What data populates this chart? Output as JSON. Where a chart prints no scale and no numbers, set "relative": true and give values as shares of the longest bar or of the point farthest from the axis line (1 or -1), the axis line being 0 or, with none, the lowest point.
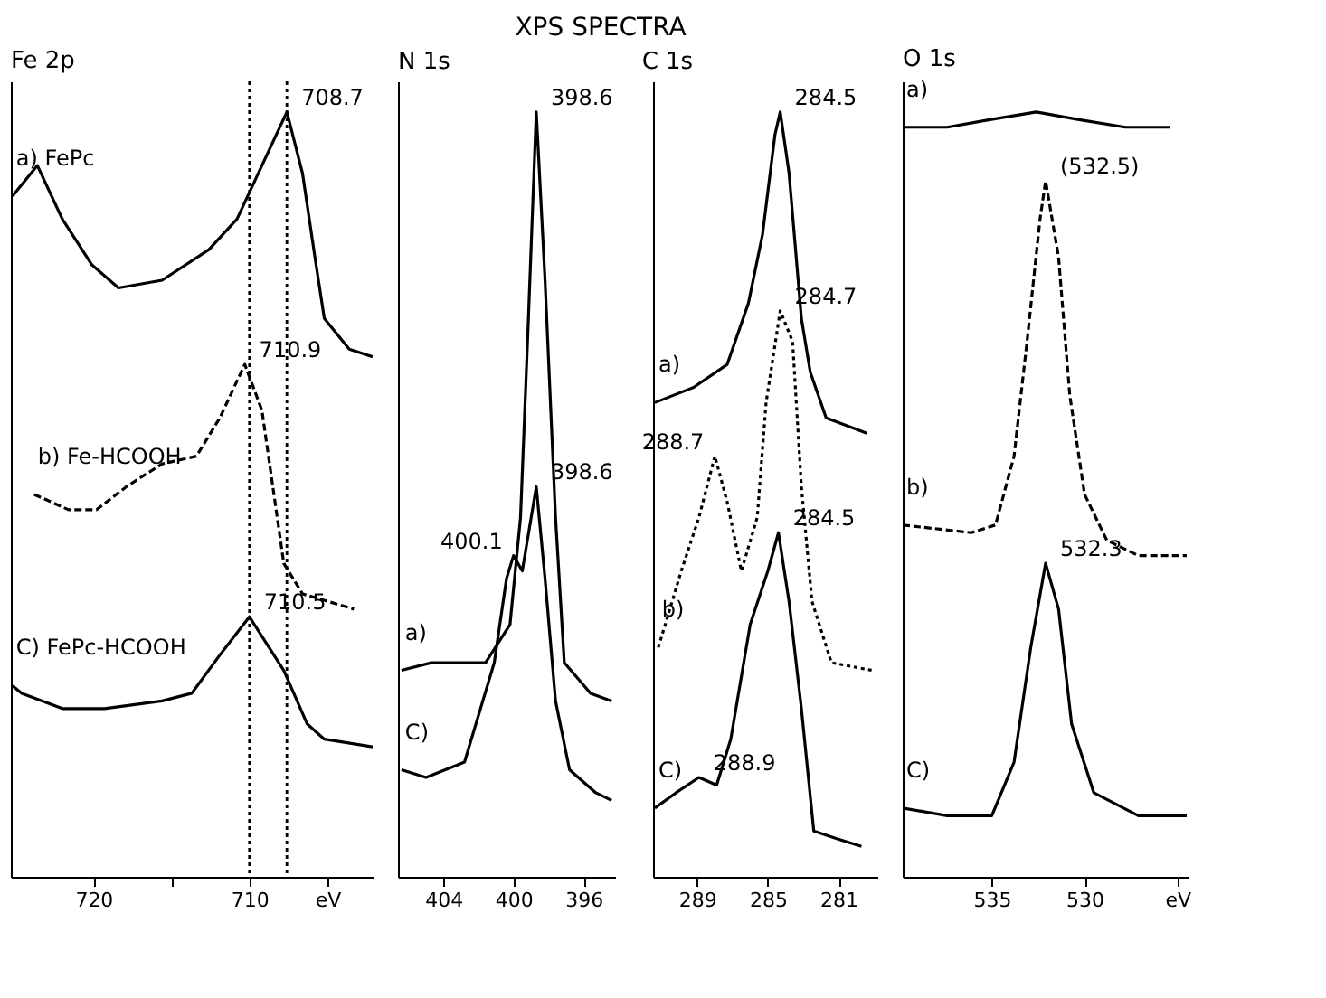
{
  "chart_data": [
    {
      "type": "line",
      "title": "Fe 2p",
      "relative": true,
      "xlim": [
        725.3,
        702.1
      ],
      "xticks": [
        720,
        {
          "value": 715,
          "label": null
        },
        710,
        {
          "value": 705,
          "label": "eV"
        }
      ],
      "annotations": [
        "XPS SPECTRA",
        {
          "text": "708.7",
          "x": 707.6,
          "y": 1.0
        },
        {
          "text": "710.9",
          "x": 710.3,
          "y": 0.67
        },
        {
          "text": "710.5",
          "x": 710.0,
          "y": 0.34
        }
      ],
      "ref_lines": [
        {
          "axis": "x",
          "value": 710.0,
          "label": null,
          "line_style": "dotted",
          "color": "#000000"
        },
        {
          "axis": "x",
          "value": 707.6,
          "label": null,
          "line_style": "dotted",
          "color": "#000000"
        }
      ],
      "series": [
        {
          "name": "a) FePc",
          "color": "#000000",
          "line_style": "solid",
          "x": [
            725.2,
            723.6,
            722.0,
            720.1,
            718.4,
            715.6,
            712.6,
            710.8,
            709.2,
            707.6,
            706.6,
            705.8,
            705.2,
            703.6,
            702.1
          ],
          "values": [
            0.89,
            0.93,
            0.86,
            0.8,
            0.77,
            0.78,
            0.82,
            0.86,
            0.93,
            1.0,
            0.92,
            0.81,
            0.73,
            0.69,
            0.68
          ]
        },
        {
          "name": "b) Fe-HCOOH",
          "color": "#000000",
          "line_style": "dashed",
          "x": [
            723.8,
            721.6,
            719.8,
            717.9,
            715.6,
            713.4,
            711.9,
            710.3,
            709.2,
            708.5,
            707.8,
            706.6,
            703.3
          ],
          "values": [
            0.5,
            0.48,
            0.48,
            0.51,
            0.54,
            0.55,
            0.6,
            0.67,
            0.61,
            0.51,
            0.41,
            0.37,
            0.35
          ]
        },
        {
          "name": "C) FePc-HCOOH",
          "color": "#000000",
          "line_style": "solid",
          "x": [
            725.2,
            724.6,
            722.0,
            719.3,
            715.6,
            713.7,
            711.9,
            710.0,
            707.8,
            706.3,
            705.2,
            702.1
          ],
          "values": [
            0.25,
            0.24,
            0.22,
            0.22,
            0.23,
            0.24,
            0.29,
            0.34,
            0.27,
            0.2,
            0.18,
            0.17
          ]
        }
      ]
    },
    {
      "type": "line",
      "title": "N 1s",
      "relative": true,
      "xlim": [
        406.6,
        394.2
      ],
      "xticks": [
        404,
        400,
        396
      ],
      "annotations": [
        {
          "text": "398.6",
          "x": 398.7,
          "y": 1.0
        },
        {
          "text": "398.6",
          "x": 398.7,
          "y": 0.51
        },
        {
          "text": "400.1",
          "x": 400.0,
          "y": 0.42
        }
      ],
      "series": [
        {
          "name": "a)",
          "color": "#000000",
          "line_style": "solid",
          "x": [
            406.4,
            404.7,
            401.6,
            400.2,
            399.6,
            399.2,
            398.7,
            398.2,
            397.6,
            397.1,
            395.6,
            394.4
          ],
          "values": [
            0.27,
            0.28,
            0.28,
            0.33,
            0.47,
            0.7,
            1.0,
            0.78,
            0.47,
            0.28,
            0.24,
            0.23
          ]
        },
        {
          "name": "C)",
          "color": "#000000",
          "line_style": "solid",
          "x": [
            406.4,
            405.0,
            402.8,
            401.1,
            400.4,
            400.0,
            399.5,
            398.7,
            398.2,
            397.6,
            396.8,
            395.3,
            394.4
          ],
          "values": [
            0.14,
            0.13,
            0.15,
            0.28,
            0.39,
            0.42,
            0.4,
            0.51,
            0.39,
            0.23,
            0.14,
            0.11,
            0.1
          ]
        }
      ]
    },
    {
      "type": "line",
      "title": "C 1s",
      "relative": true,
      "xlim": [
        291.5,
        278.8
      ],
      "xticks": [
        289,
        285,
        281
      ],
      "annotations": [
        {
          "text": "284.5",
          "x": 284.3,
          "y": 1.0
        },
        {
          "text": "284.7",
          "x": 284.3,
          "y": 0.74
        },
        {
          "text": "288.7",
          "x": 288.0,
          "y": 0.55
        },
        {
          "text": "284.5",
          "x": 284.4,
          "y": 0.45
        },
        {
          "text": "288.9",
          "x": 288.9,
          "y": 0.13
        }
      ],
      "series": [
        {
          "name": "a)",
          "color": "#000000",
          "line_style": "solid",
          "x": [
            291.4,
            289.2,
            287.3,
            286.1,
            285.3,
            284.6,
            284.3,
            283.8,
            283.1,
            282.6,
            281.7,
            279.4
          ],
          "values": [
            0.62,
            0.64,
            0.67,
            0.75,
            0.84,
            0.97,
            1.0,
            0.92,
            0.73,
            0.66,
            0.6,
            0.58
          ]
        },
        {
          "name": "b)",
          "color": "#000000",
          "line_style": "dotted",
          "x": [
            291.2,
            289.9,
            288.9,
            288.0,
            287.3,
            286.5,
            285.6,
            285.1,
            284.3,
            283.6,
            283.1,
            282.5,
            281.4,
            279.1
          ],
          "values": [
            0.3,
            0.4,
            0.47,
            0.55,
            0.49,
            0.4,
            0.47,
            0.62,
            0.74,
            0.7,
            0.51,
            0.36,
            0.28,
            0.27
          ]
        },
        {
          "name": "C)",
          "color": "#000000",
          "line_style": "solid",
          "x": [
            291.4,
            290.2,
            288.9,
            287.9,
            287.1,
            286.0,
            285.0,
            284.4,
            283.8,
            283.1,
            282.4,
            281.1,
            279.7
          ],
          "values": [
            0.09,
            0.11,
            0.13,
            0.12,
            0.18,
            0.33,
            0.4,
            0.45,
            0.36,
            0.22,
            0.06,
            0.05,
            0.04
          ]
        }
      ]
    },
    {
      "type": "line",
      "title": "O 1s",
      "relative": true,
      "xlim": [
        539.8,
        524.4
      ],
      "xticks": [
        535,
        530,
        {
          "value": 525,
          "label": "eV"
        }
      ],
      "annotations": [
        {
          "text": "(532.5)",
          "x": 532.1,
          "y": 0.91
        },
        {
          "text": "532.3",
          "x": 532.1,
          "y": 0.41
        }
      ],
      "series": [
        {
          "name": "a)",
          "color": "#000000",
          "line_style": "solid",
          "x": [
            539.8,
            537.4,
            535.1,
            532.6,
            530.3,
            527.8,
            525.4
          ],
          "values": [
            0.98,
            0.98,
            0.99,
            1.0,
            0.99,
            0.98,
            0.98
          ]
        },
        {
          "name": "b)",
          "color": "#000000",
          "line_style": "dashed",
          "x": [
            539.8,
            536.1,
            534.8,
            533.8,
            533.1,
            532.4,
            532.1,
            531.4,
            530.8,
            530.0,
            528.8,
            527.1,
            524.5
          ],
          "values": [
            0.46,
            0.45,
            0.46,
            0.55,
            0.7,
            0.86,
            0.91,
            0.81,
            0.63,
            0.5,
            0.44,
            0.42,
            0.42
          ]
        },
        {
          "name": "C)",
          "color": "#000000",
          "line_style": "solid",
          "x": [
            539.8,
            537.4,
            535.0,
            533.8,
            532.9,
            532.1,
            531.4,
            530.7,
            529.5,
            527.1,
            524.5
          ],
          "values": [
            0.09,
            0.08,
            0.08,
            0.15,
            0.3,
            0.41,
            0.35,
            0.2,
            0.11,
            0.08,
            0.08
          ]
        }
      ]
    }
  ]
}
